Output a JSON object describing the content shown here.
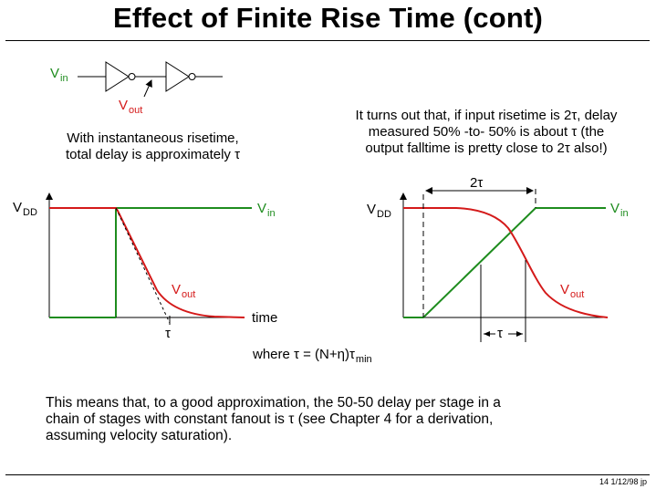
{
  "title": "Effect of Finite Rise Time (cont)",
  "circuit": {
    "vin_main": "V",
    "vin_sub": "in",
    "vout_main": "V",
    "vout_sub": "out"
  },
  "left_caption": {
    "line1": "With instantaneous risetime,",
    "line2": "total delay is approximately τ"
  },
  "right_caption": {
    "line1": "It turns out that, if input risetime is 2τ, delay",
    "line2": "measured 50% -to- 50% is about τ  (the",
    "line3": "output falltime is pretty close to 2τ also!)"
  },
  "left_plot": {
    "vdd_main": "V",
    "vdd_sub": "DD",
    "vin_main": "V",
    "vin_sub": "in",
    "vout_main": "V",
    "vout_sub": "out",
    "x_label": "time",
    "tau_label": "τ"
  },
  "right_plot": {
    "vdd_main": "V",
    "vdd_sub": "DD",
    "vin_main": "V",
    "vin_sub": "in",
    "vout_main": "V",
    "vout_sub": "out",
    "two_tau_label": "2τ",
    "tau_label": "τ"
  },
  "formula": {
    "prefix": "where τ = (N+η)τ",
    "sub": "min"
  },
  "conclusion": {
    "line1": "This means that, to a good approximation, the 50-50 delay per stage in a",
    "line2": "chain of stages with constant fanout is τ (see Chapter 4 for a derivation,",
    "line3": "assuming velocity saturation)."
  },
  "footer": "14  1/12/98  jp",
  "colors": {
    "input_signal": "#1e8c1e",
    "output_signal": "#d41a1a"
  }
}
